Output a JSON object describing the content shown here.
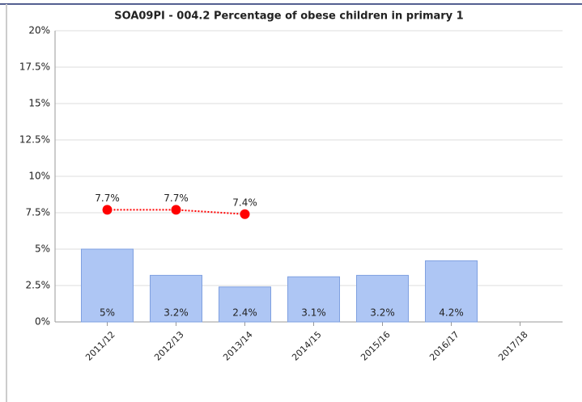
{
  "chart_data": {
    "type": "bar",
    "title": "SOA09PI - 004.2 Percentage of obese children in primary 1",
    "categories": [
      "2011/12",
      "2012/13",
      "2013/14",
      "2014/15",
      "2015/16",
      "2016/17",
      "2017/18"
    ],
    "series": [
      {
        "type": "bar",
        "color": "#aec6f4",
        "values": [
          5,
          3.2,
          2.4,
          3.1,
          3.2,
          4.2,
          null
        ],
        "value_labels": [
          "5%",
          "3.2%",
          "2.4%",
          "3.1%",
          "3.2%",
          "4.2%",
          null
        ]
      },
      {
        "type": "line",
        "color": "#ff0000",
        "values": [
          7.7,
          7.7,
          7.4,
          null,
          null,
          null,
          null
        ],
        "value_labels": [
          "7.7%",
          "7.7%",
          "7.4%",
          null,
          null,
          null,
          null
        ]
      }
    ],
    "ylim": [
      0,
      20
    ],
    "yticks": [
      {
        "value": 0,
        "label": "0%"
      },
      {
        "value": 2.5,
        "label": "2.5%"
      },
      {
        "value": 5,
        "label": "5%"
      },
      {
        "value": 7.5,
        "label": "7.5%"
      },
      {
        "value": 10,
        "label": "10%"
      },
      {
        "value": 12.5,
        "label": "12.5%"
      },
      {
        "value": 15,
        "label": "15%"
      },
      {
        "value": 17.5,
        "label": "17.5%"
      },
      {
        "value": 20,
        "label": "20%"
      }
    ],
    "grid": true
  }
}
